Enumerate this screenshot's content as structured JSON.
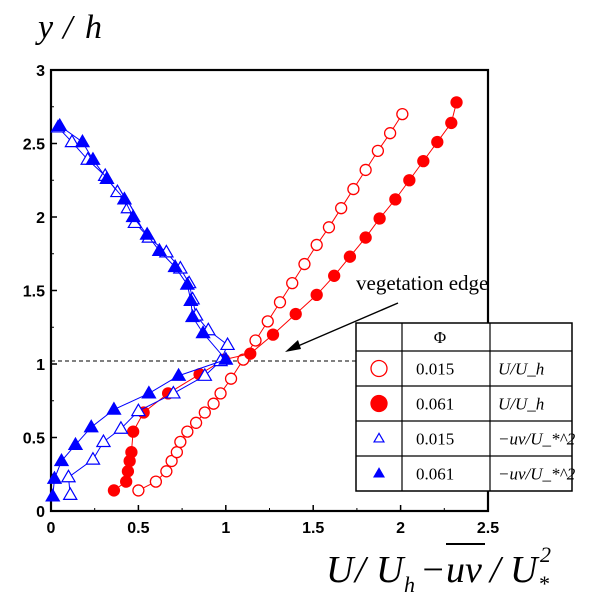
{
  "chart_data": {
    "type": "scatter",
    "title": "",
    "ylabel": "y / h",
    "xlabel": "U / U_h − \\overline{uv} / U_*^2",
    "xlim": [
      0,
      2.5
    ],
    "ylim": [
      0,
      3
    ],
    "x_ticks": [
      "0",
      "0.5",
      "1",
      "1.5",
      "2",
      "2.5"
    ],
    "y_ticks": [
      "0",
      "0.5",
      "1",
      "1.5",
      "2",
      "2.5",
      "3"
    ],
    "grid": false,
    "annotations": [
      {
        "text": "vegetation edge",
        "points_to": {
          "x": 1.3,
          "y": 1.02
        }
      }
    ],
    "reference_line": {
      "y": 1.02,
      "style": "dashed"
    },
    "series": [
      {
        "name": "U/U_h, Φ = 0.015",
        "marker": "open-circle",
        "color": "#ff0000",
        "x": [
          0.5,
          0.6,
          0.66,
          0.69,
          0.72,
          0.74,
          0.78,
          0.83,
          0.88,
          0.93,
          0.97,
          1.03,
          1.1,
          1.17,
          1.24,
          1.31,
          1.38,
          1.45,
          1.52,
          1.59,
          1.66,
          1.73,
          1.8,
          1.87,
          1.94,
          2.01
        ],
        "y": [
          0.14,
          0.2,
          0.27,
          0.34,
          0.4,
          0.47,
          0.54,
          0.6,
          0.67,
          0.73,
          0.8,
          0.9,
          1.03,
          1.16,
          1.29,
          1.42,
          1.55,
          1.68,
          1.81,
          1.93,
          2.06,
          2.19,
          2.32,
          2.45,
          2.57,
          2.7
        ]
      },
      {
        "name": "U/U_h, Φ = 0.061",
        "marker": "filled-circle",
        "color": "#ff0000",
        "x": [
          0.36,
          0.43,
          0.44,
          0.45,
          0.46,
          0.47,
          0.53,
          0.67,
          0.85,
          0.99,
          1.14,
          1.27,
          1.4,
          1.52,
          1.62,
          1.71,
          1.8,
          1.88,
          1.97,
          2.05,
          2.13,
          2.21,
          2.29,
          2.32
        ],
        "y": [
          0.14,
          0.2,
          0.27,
          0.34,
          0.4,
          0.54,
          0.67,
          0.8,
          0.93,
          1.03,
          1.07,
          1.2,
          1.34,
          1.47,
          1.6,
          1.73,
          1.86,
          1.99,
          2.12,
          2.25,
          2.38,
          2.51,
          2.64,
          2.78
        ]
      },
      {
        "name": "−uv/U_*^2, Φ = 0.015",
        "marker": "open-triangle",
        "color": "#0000ff",
        "x": [
          0.11,
          0.1,
          0.24,
          0.3,
          0.4,
          0.5,
          0.7,
          0.88,
          0.97,
          1.01,
          0.9,
          0.83,
          0.81,
          0.79,
          0.74,
          0.66,
          0.56,
          0.48,
          0.44,
          0.38,
          0.31,
          0.21,
          0.12,
          0.04
        ],
        "y": [
          0.11,
          0.23,
          0.35,
          0.47,
          0.56,
          0.68,
          0.8,
          0.92,
          1.02,
          1.13,
          1.23,
          1.33,
          1.44,
          1.55,
          1.65,
          1.76,
          1.86,
          1.96,
          2.06,
          2.17,
          2.28,
          2.39,
          2.51,
          2.61
        ]
      },
      {
        "name": "−uv/U_*^2, Φ = 0.061",
        "marker": "filled-triangle",
        "color": "#0000ff",
        "x": [
          0.01,
          0.02,
          0.06,
          0.14,
          0.23,
          0.36,
          0.56,
          0.73,
          1.0,
          0.87,
          0.81,
          0.8,
          0.78,
          0.71,
          0.62,
          0.55,
          0.47,
          0.42,
          0.32,
          0.24,
          0.18,
          0.05
        ],
        "y": [
          0.1,
          0.22,
          0.34,
          0.45,
          0.57,
          0.69,
          0.8,
          0.92,
          1.03,
          1.21,
          1.32,
          1.43,
          1.54,
          1.66,
          1.77,
          1.88,
          2.0,
          2.12,
          2.26,
          2.39,
          2.51,
          2.62
        ]
      }
    ],
    "legend": {
      "header": "Φ",
      "rows": [
        {
          "marker": "open-circle",
          "color": "#ff0000",
          "phi": "0.015",
          "quantity": "U/U_h"
        },
        {
          "marker": "filled-circle",
          "color": "#ff0000",
          "phi": "0.061",
          "quantity": "U/U_h"
        },
        {
          "marker": "open-triangle",
          "color": "#0000ff",
          "phi": "0.015",
          "quantity": "−uv/U_*^2"
        },
        {
          "marker": "filled-triangle",
          "color": "#0000ff",
          "phi": "0.061",
          "quantity": "−uv/U_*^2"
        }
      ]
    }
  }
}
